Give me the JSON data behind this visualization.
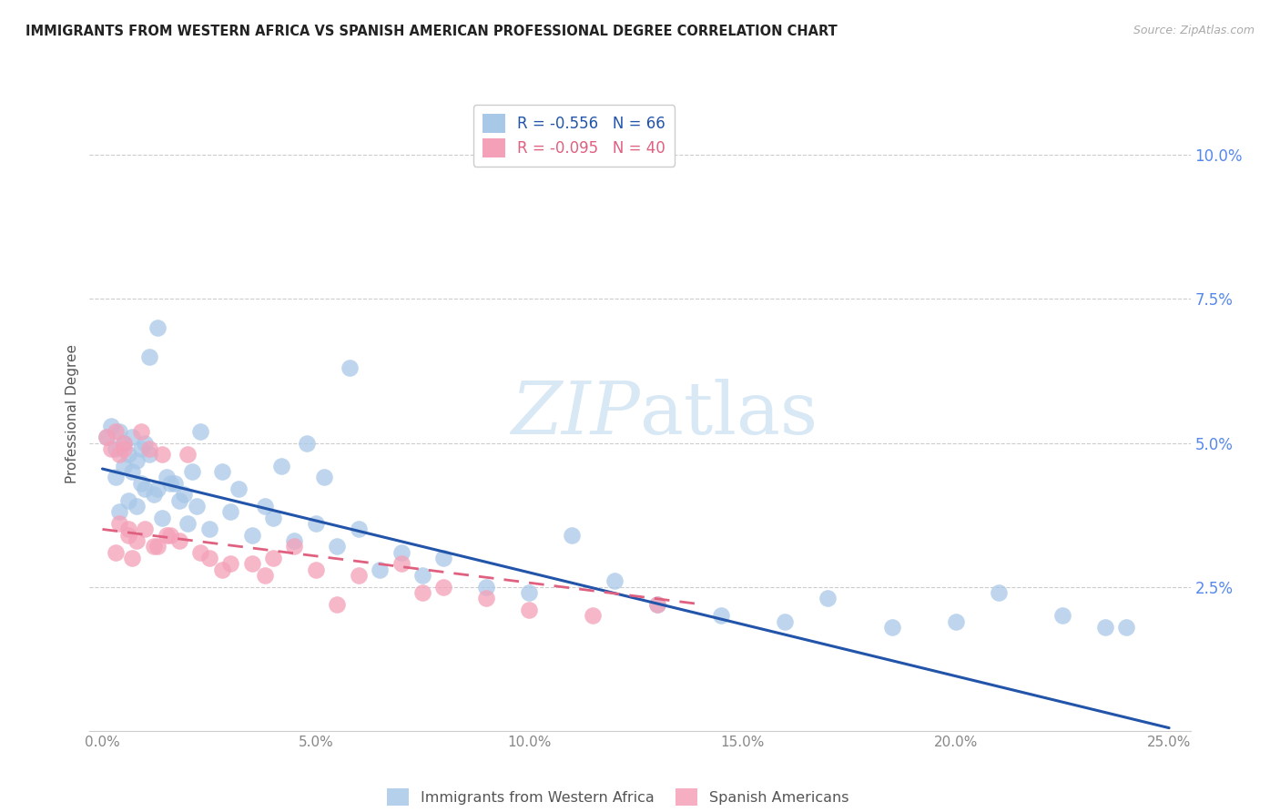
{
  "title": "IMMIGRANTS FROM WESTERN AFRICA VS SPANISH AMERICAN PROFESSIONAL DEGREE CORRELATION CHART",
  "source": "Source: ZipAtlas.com",
  "ylabel": "Professional Degree",
  "xlabel_vals": [
    0.0,
    5.0,
    10.0,
    15.0,
    20.0,
    25.0
  ],
  "ylabel_vals": [
    2.5,
    5.0,
    7.5,
    10.0
  ],
  "blue_R": -0.556,
  "blue_N": 66,
  "pink_R": -0.095,
  "pink_N": 40,
  "blue_color": "#a8c8e8",
  "pink_color": "#f4a0b8",
  "blue_line_color": "#2255aa",
  "pink_line_color": "#e06080",
  "watermark_color": "#d8e8f5",
  "blue_scatter_x": [
    0.1,
    0.2,
    0.3,
    0.4,
    0.5,
    0.6,
    0.7,
    0.8,
    0.9,
    1.0,
    0.3,
    0.5,
    0.7,
    0.9,
    1.1,
    1.3,
    1.5,
    1.7,
    1.9,
    2.1,
    0.4,
    0.6,
    0.8,
    1.0,
    1.2,
    1.4,
    1.6,
    1.8,
    2.0,
    2.2,
    2.5,
    3.0,
    3.5,
    4.0,
    4.5,
    5.0,
    5.5,
    6.0,
    7.0,
    8.0,
    2.8,
    3.2,
    3.8,
    4.2,
    5.2,
    6.5,
    7.5,
    9.0,
    10.0,
    11.0,
    12.0,
    13.0,
    14.5,
    16.0,
    17.0,
    18.5,
    20.0,
    21.0,
    22.5,
    23.5,
    1.1,
    1.3,
    2.3,
    4.8,
    5.8,
    24.0
  ],
  "blue_scatter_y": [
    5.1,
    5.3,
    4.9,
    5.2,
    5.0,
    4.8,
    5.1,
    4.7,
    4.9,
    5.0,
    4.4,
    4.6,
    4.5,
    4.3,
    4.8,
    4.2,
    4.4,
    4.3,
    4.1,
    4.5,
    3.8,
    4.0,
    3.9,
    4.2,
    4.1,
    3.7,
    4.3,
    4.0,
    3.6,
    3.9,
    3.5,
    3.8,
    3.4,
    3.7,
    3.3,
    3.6,
    3.2,
    3.5,
    3.1,
    3.0,
    4.5,
    4.2,
    3.9,
    4.6,
    4.4,
    2.8,
    2.7,
    2.5,
    2.4,
    3.4,
    2.6,
    2.2,
    2.0,
    1.9,
    2.3,
    1.8,
    1.9,
    2.4,
    2.0,
    1.8,
    6.5,
    7.0,
    5.2,
    5.0,
    6.3,
    1.8
  ],
  "pink_scatter_x": [
    0.1,
    0.2,
    0.3,
    0.4,
    0.5,
    0.6,
    0.8,
    1.0,
    1.2,
    1.4,
    0.3,
    0.5,
    0.7,
    0.9,
    1.1,
    1.3,
    1.5,
    1.8,
    2.0,
    2.3,
    2.5,
    3.0,
    3.5,
    4.0,
    4.5,
    5.0,
    6.0,
    7.0,
    8.0,
    9.0,
    0.4,
    0.6,
    1.6,
    2.8,
    3.8,
    5.5,
    7.5,
    10.0,
    11.5,
    13.0
  ],
  "pink_scatter_y": [
    5.1,
    4.9,
    5.2,
    4.8,
    5.0,
    3.4,
    3.3,
    3.5,
    3.2,
    4.8,
    3.1,
    4.9,
    3.0,
    5.2,
    4.9,
    3.2,
    3.4,
    3.3,
    4.8,
    3.1,
    3.0,
    2.9,
    2.9,
    3.0,
    3.2,
    2.8,
    2.7,
    2.9,
    2.5,
    2.3,
    3.6,
    3.5,
    3.4,
    2.8,
    2.7,
    2.2,
    2.4,
    2.1,
    2.0,
    2.2
  ],
  "blue_line_x0": 0.0,
  "blue_line_x1": 25.0,
  "blue_line_y0": 4.55,
  "blue_line_y1": 0.05,
  "pink_line_x0": 0.0,
  "pink_line_x1": 14.0,
  "pink_line_y0": 3.5,
  "pink_line_y1": 2.2,
  "xlim": [
    -0.3,
    25.5
  ],
  "ylim": [
    0.0,
    11.0
  ],
  "figsize": [
    14.06,
    8.92
  ],
  "dpi": 100
}
